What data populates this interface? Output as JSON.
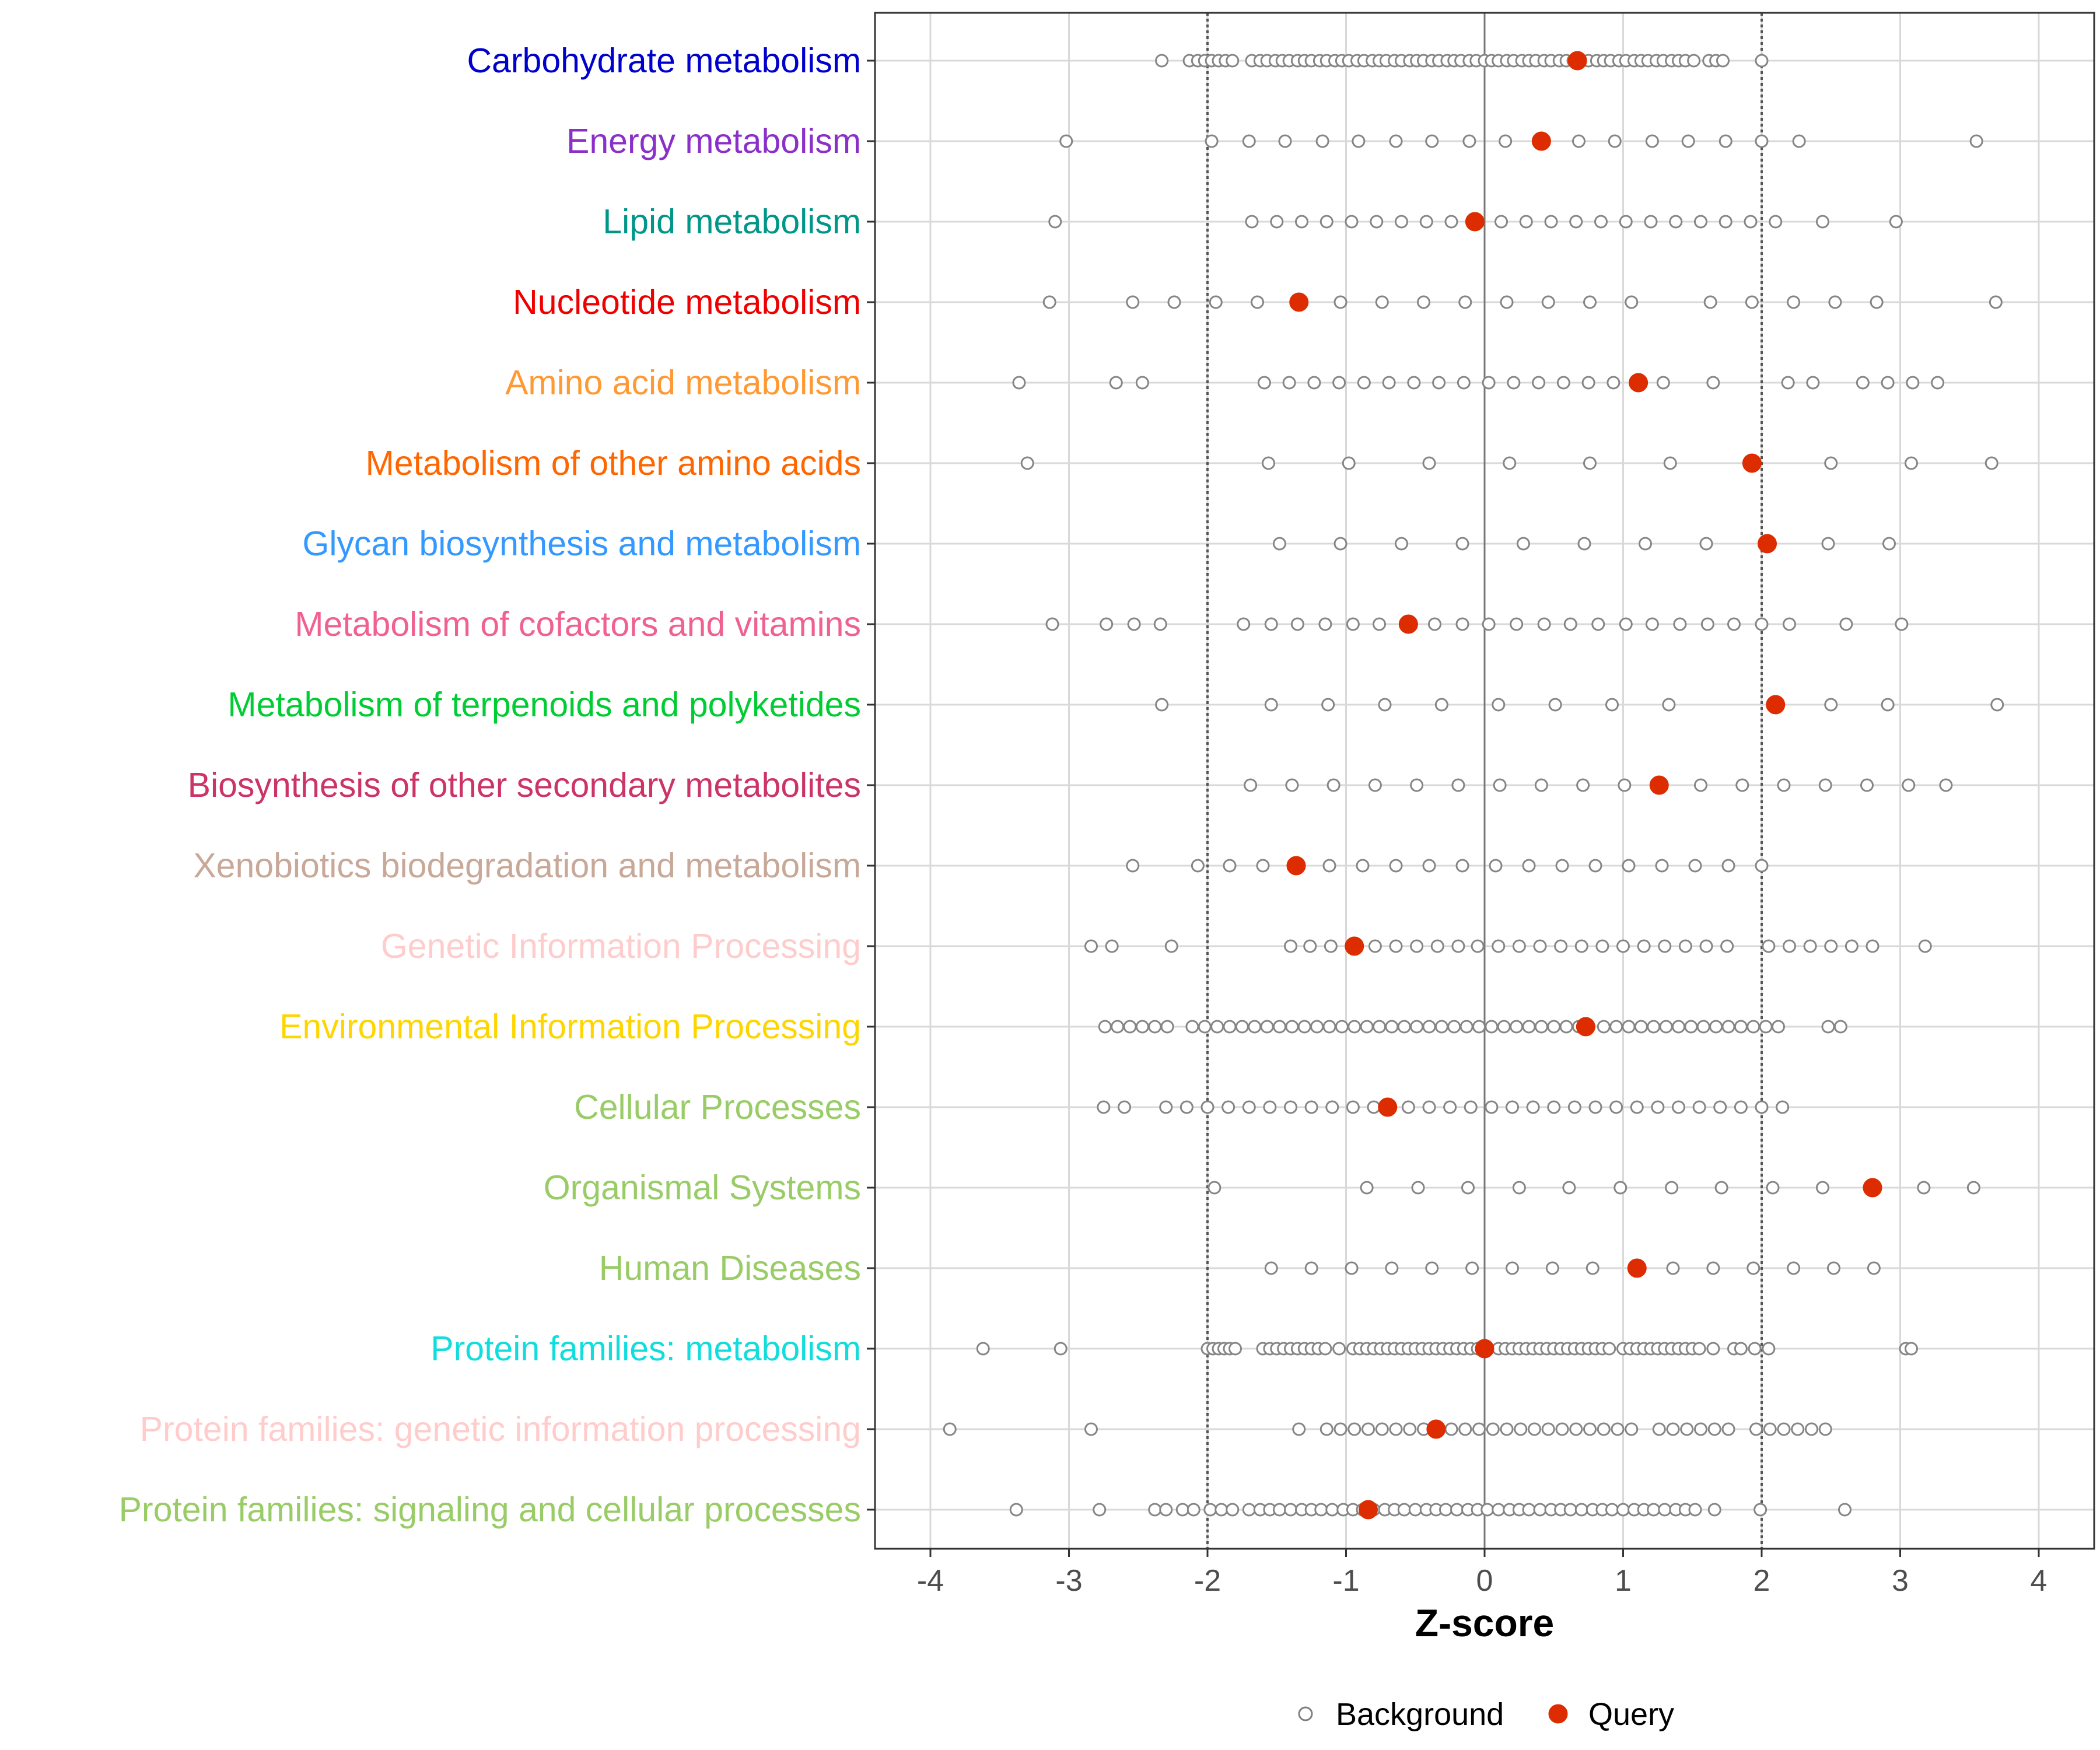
{
  "chart_data": {
    "type": "scatter",
    "title": "",
    "xlabel": "Z-score",
    "ylabel": "",
    "xlim": [
      -4.4,
      4.4
    ],
    "xticks": [
      -4,
      -3,
      -2,
      -1,
      0,
      1,
      2,
      3,
      4
    ],
    "xtick_labels": [
      "-4",
      "-3",
      "-2",
      "-1",
      "0",
      "1",
      "2",
      "3",
      "4"
    ],
    "reference_lines": [
      -2,
      0,
      2
    ],
    "legend": {
      "position": "bottom",
      "entries": [
        {
          "name": "Background",
          "style": "open-circle",
          "color": "#7f7f7f"
        },
        {
          "name": "Query",
          "style": "filled-circle",
          "color": "#dd2c00"
        }
      ]
    },
    "categories": [
      {
        "name": "Carbohydrate metabolism",
        "color": "#0000cc",
        "query": 0.67,
        "background": [
          -2.33,
          -2.13,
          -2.07,
          -2.02,
          -1.97,
          -1.92,
          -1.87,
          -1.82,
          -1.68,
          -1.62,
          -1.57,
          -1.51,
          -1.46,
          -1.41,
          -1.35,
          -1.3,
          -1.25,
          -1.19,
          -1.14,
          -1.08,
          -1.03,
          -0.98,
          -0.92,
          -0.87,
          -0.81,
          -0.76,
          -0.71,
          -0.65,
          -0.6,
          -0.54,
          -0.49,
          -0.44,
          -0.38,
          -0.33,
          -0.27,
          -0.22,
          -0.17,
          -0.11,
          -0.06,
          0,
          0.05,
          0.1,
          0.16,
          0.21,
          0.27,
          0.32,
          0.37,
          0.43,
          0.48,
          0.54,
          0.59,
          0.64,
          0.7,
          0.75,
          0.81,
          0.86,
          0.91,
          0.97,
          1.02,
          1.08,
          1.13,
          1.18,
          1.24,
          1.29,
          1.35,
          1.4,
          1.45,
          1.51,
          1.62,
          1.67,
          1.72,
          2.0
        ]
      },
      {
        "name": "Energy metabolism",
        "color": "#8b2fc9",
        "query": 0.41,
        "background": [
          -3.02,
          -1.97,
          -1.7,
          -1.44,
          -1.17,
          -0.91,
          -0.64,
          -0.38,
          -0.11,
          0.15,
          0.68,
          0.94,
          1.21,
          1.47,
          1.74,
          2.0,
          2.27,
          3.55
        ]
      },
      {
        "name": "Lipid metabolism",
        "color": "#009688",
        "query": -0.07,
        "background": [
          -3.1,
          -1.68,
          -1.5,
          -1.32,
          -1.14,
          -0.96,
          -0.78,
          -0.6,
          -0.42,
          -0.24,
          0.12,
          0.3,
          0.48,
          0.66,
          0.84,
          1.02,
          1.2,
          1.38,
          1.56,
          1.74,
          1.92,
          2.1,
          2.44,
          2.97
        ]
      },
      {
        "name": "Nucleotide metabolism",
        "color": "#ee0000",
        "query": -1.34,
        "background": [
          -3.14,
          -2.54,
          -2.24,
          -1.94,
          -1.64,
          -1.04,
          -0.74,
          -0.44,
          -0.14,
          0.16,
          0.46,
          0.76,
          1.06,
          1.63,
          1.93,
          2.23,
          2.53,
          2.83,
          3.69
        ]
      },
      {
        "name": "Amino acid metabolism",
        "color": "#ff9933",
        "query": 1.11,
        "background": [
          -3.36,
          -2.66,
          -2.47,
          -1.59,
          -1.41,
          -1.23,
          -1.05,
          -0.87,
          -0.69,
          -0.51,
          -0.33,
          -0.15,
          0.03,
          0.21,
          0.39,
          0.57,
          0.75,
          0.93,
          1.29,
          1.65,
          2.19,
          2.37,
          2.73,
          2.91,
          3.09,
          3.27
        ]
      },
      {
        "name": "Metabolism of other amino acids",
        "color": "#ff6600",
        "query": 1.93,
        "background": [
          -3.3,
          -1.56,
          -0.98,
          -0.4,
          0.18,
          0.76,
          1.34,
          2.5,
          3.08,
          3.66
        ]
      },
      {
        "name": "Glycan biosynthesis and metabolism",
        "color": "#3399ff",
        "query": 2.04,
        "background": [
          -1.48,
          -1.04,
          -0.6,
          -0.16,
          0.28,
          0.72,
          1.16,
          1.6,
          2.48,
          2.92
        ]
      },
      {
        "name": "Metabolism of cofactors and vitamins",
        "color": "#f06090",
        "query": -0.55,
        "background": [
          -3.12,
          -2.73,
          -2.53,
          -2.34,
          -1.74,
          -1.54,
          -1.35,
          -1.15,
          -0.95,
          -0.76,
          -0.36,
          -0.16,
          0.03,
          0.23,
          0.43,
          0.62,
          0.82,
          1.02,
          1.21,
          1.41,
          1.61,
          1.8,
          2.0,
          2.2,
          2.61,
          3.01
        ]
      },
      {
        "name": "Metabolism of terpenoids and polyketides",
        "color": "#00cc33",
        "query": 2.1,
        "background": [
          -2.33,
          -1.54,
          -1.13,
          -0.72,
          -0.31,
          0.1,
          0.51,
          0.92,
          1.33,
          2.5,
          2.91,
          3.7
        ]
      },
      {
        "name": "Biosynthesis of other secondary metabolites",
        "color": "#cc3366",
        "query": 1.26,
        "background": [
          -1.69,
          -1.39,
          -1.09,
          -0.79,
          -0.49,
          -0.19,
          0.11,
          0.41,
          0.71,
          1.01,
          1.56,
          1.86,
          2.16,
          2.46,
          2.76,
          3.06,
          3.33
        ]
      },
      {
        "name": "Xenobiotics biodegradation and metabolism",
        "color": "#c8a898",
        "query": -1.36,
        "background": [
          -2.54,
          -2.07,
          -1.84,
          -1.6,
          -1.12,
          -0.88,
          -0.64,
          -0.4,
          -0.16,
          0.08,
          0.32,
          0.56,
          0.8,
          1.04,
          1.28,
          1.52,
          1.76,
          2.0
        ]
      },
      {
        "name": "Genetic Information Processing",
        "color": "#ffcccc",
        "query": -0.94,
        "background": [
          -2.84,
          -2.69,
          -2.26,
          -1.4,
          -1.26,
          -1.11,
          -0.79,
          -0.64,
          -0.49,
          -0.34,
          -0.19,
          -0.05,
          0.1,
          0.25,
          0.4,
          0.55,
          0.7,
          0.85,
          1.0,
          1.15,
          1.3,
          1.45,
          1.6,
          1.75,
          2.05,
          2.2,
          2.35,
          2.5,
          2.65,
          2.8,
          3.18
        ]
      },
      {
        "name": "Environmental Information Processing",
        "color": "#ffd500",
        "query": 0.73,
        "background": [
          -2.74,
          -2.65,
          -2.56,
          -2.47,
          -2.38,
          -2.29,
          -2.11,
          -2.02,
          -1.93,
          -1.84,
          -1.75,
          -1.66,
          -1.57,
          -1.48,
          -1.39,
          -1.3,
          -1.21,
          -1.12,
          -1.03,
          -0.94,
          -0.85,
          -0.76,
          -0.67,
          -0.58,
          -0.49,
          -0.4,
          -0.31,
          -0.22,
          -0.13,
          -0.04,
          0.05,
          0.14,
          0.23,
          0.32,
          0.41,
          0.5,
          0.59,
          0.68,
          0.86,
          0.95,
          1.04,
          1.13,
          1.22,
          1.31,
          1.4,
          1.49,
          1.58,
          1.67,
          1.76,
          1.85,
          1.94,
          2.03,
          2.12,
          2.48,
          2.57
        ]
      },
      {
        "name": "Cellular Processes",
        "color": "#99cc66",
        "query": -0.7,
        "background": [
          -2.75,
          -2.6,
          -2.3,
          -2.15,
          -2.0,
          -1.85,
          -1.7,
          -1.55,
          -1.4,
          -1.25,
          -1.1,
          -0.95,
          -0.8,
          -0.55,
          -0.4,
          -0.25,
          -0.1,
          0.05,
          0.2,
          0.35,
          0.5,
          0.65,
          0.8,
          0.95,
          1.1,
          1.25,
          1.4,
          1.55,
          1.7,
          1.85,
          2.0,
          2.15
        ]
      },
      {
        "name": "Organismal Systems",
        "color": "#99cc66",
        "query": 2.8,
        "background": [
          -1.95,
          -0.85,
          -0.48,
          -0.12,
          0.25,
          0.61,
          0.98,
          1.35,
          1.71,
          2.08,
          2.44,
          3.17,
          3.53
        ]
      },
      {
        "name": "Human Diseases",
        "color": "#99cc66",
        "query": 1.1,
        "background": [
          -1.54,
          -1.25,
          -0.96,
          -0.67,
          -0.38,
          -0.09,
          0.2,
          0.49,
          0.78,
          1.36,
          1.65,
          1.94,
          2.23,
          2.52,
          2.81
        ]
      },
      {
        "name": "Protein families: metabolism",
        "color": "#11dddd",
        "query": 0.0,
        "background": [
          -3.62,
          -3.06,
          -2.0,
          -1.96,
          -1.92,
          -1.88,
          -1.84,
          -1.8,
          -1.6,
          -1.55,
          -1.5,
          -1.45,
          -1.4,
          -1.35,
          -1.3,
          -1.25,
          -1.2,
          -1.15,
          -1.05,
          -0.95,
          -0.9,
          -0.85,
          -0.8,
          -0.75,
          -0.7,
          -0.65,
          -0.6,
          -0.55,
          -0.5,
          -0.45,
          -0.4,
          -0.35,
          -0.3,
          -0.25,
          -0.2,
          -0.15,
          -0.1,
          -0.05,
          0.1,
          0.15,
          0.2,
          0.25,
          0.3,
          0.35,
          0.4,
          0.45,
          0.5,
          0.55,
          0.6,
          0.65,
          0.7,
          0.75,
          0.8,
          0.85,
          0.9,
          1.0,
          1.05,
          1.1,
          1.15,
          1.2,
          1.25,
          1.3,
          1.35,
          1.4,
          1.45,
          1.5,
          1.55,
          1.65,
          1.8,
          1.85,
          1.95,
          2.05,
          3.04,
          3.08
        ]
      },
      {
        "name": "Protein families: genetic information processing",
        "color": "#ffcccc",
        "query": -0.35,
        "background": [
          -3.86,
          -2.84,
          -1.34,
          -1.14,
          -1.04,
          -0.94,
          -0.84,
          -0.74,
          -0.64,
          -0.54,
          -0.44,
          -0.24,
          -0.14,
          -0.04,
          0.06,
          0.16,
          0.26,
          0.36,
          0.46,
          0.56,
          0.66,
          0.76,
          0.86,
          0.96,
          1.06,
          1.26,
          1.36,
          1.46,
          1.56,
          1.66,
          1.76,
          1.96,
          2.06,
          2.16,
          2.26,
          2.36,
          2.46
        ]
      },
      {
        "name": "Protein families: signaling and cellular processes",
        "color": "#99cc66",
        "query": -0.84,
        "background": [
          -3.38,
          -2.78,
          -2.38,
          -2.3,
          -2.18,
          -2.1,
          -1.98,
          -1.9,
          -1.82,
          -1.7,
          -1.62,
          -1.55,
          -1.48,
          -1.4,
          -1.32,
          -1.25,
          -1.18,
          -1.1,
          -1.02,
          -0.95,
          -0.88,
          -0.8,
          -0.72,
          -0.65,
          -0.58,
          -0.5,
          -0.42,
          -0.35,
          -0.28,
          -0.2,
          -0.12,
          -0.05,
          0.02,
          0.1,
          0.18,
          0.25,
          0.32,
          0.4,
          0.48,
          0.55,
          0.62,
          0.7,
          0.78,
          0.85,
          0.92,
          1.0,
          1.08,
          1.15,
          1.22,
          1.3,
          1.38,
          1.45,
          1.52,
          1.66,
          1.99,
          2.6
        ]
      }
    ]
  }
}
